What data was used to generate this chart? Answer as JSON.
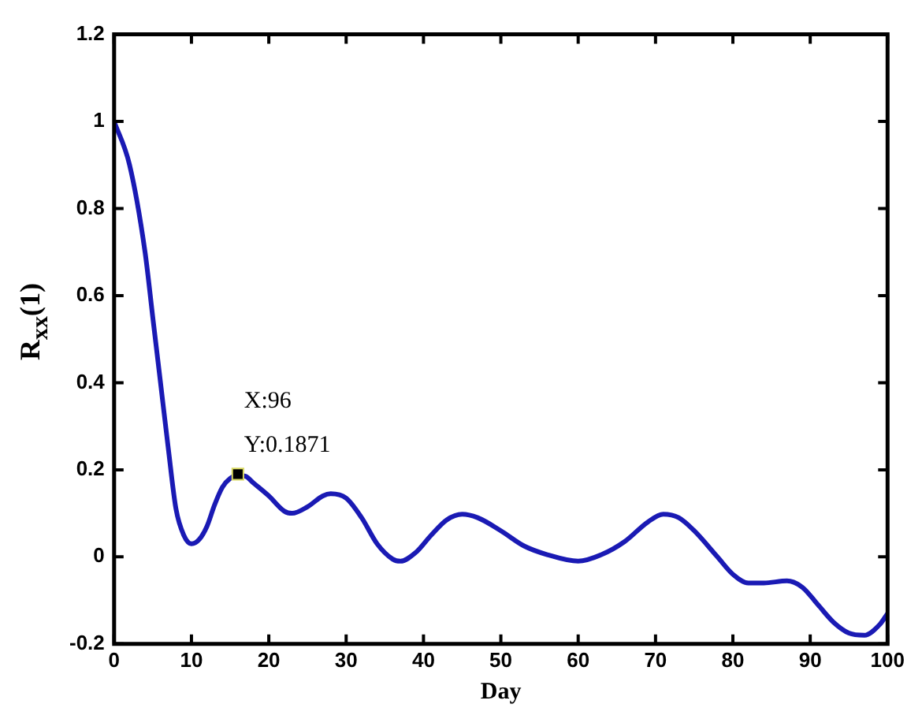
{
  "chart_data": {
    "type": "line",
    "xlabel": "Day",
    "ylabel": "R$_{xx}$(1)",
    "xlim": [
      0,
      100
    ],
    "xticks": [
      0,
      10,
      20,
      30,
      40,
      50,
      60,
      70,
      80,
      90,
      100
    ],
    "ylim": [
      -0.2,
      1.2
    ],
    "yticks": [
      -0.2,
      0,
      0.2,
      0.4,
      0.6,
      0.8,
      1,
      1.2
    ],
    "grid": false,
    "legend": false,
    "series": [
      {
        "color": "#1a1ab4",
        "marker": "none",
        "line_style": "solid",
        "x": [
          0,
          2,
          4,
          5,
          6,
          7,
          8,
          9,
          10,
          11,
          12,
          13,
          14,
          15,
          16,
          17,
          18,
          20,
          22,
          23,
          25,
          27,
          28,
          30,
          32,
          34,
          36,
          37,
          39,
          41,
          43,
          45,
          47,
          50,
          53,
          56,
          60,
          63,
          66,
          69,
          71,
          73,
          75,
          78,
          80,
          82,
          84,
          87,
          89,
          91,
          93,
          95,
          97,
          99,
          100
        ],
        "values": [
          1.0,
          0.9,
          0.7,
          0.55,
          0.4,
          0.25,
          0.11,
          0.05,
          0.03,
          0.04,
          0.07,
          0.12,
          0.16,
          0.18,
          0.187,
          0.185,
          0.17,
          0.14,
          0.105,
          0.1,
          0.115,
          0.14,
          0.145,
          0.135,
          0.09,
          0.03,
          -0.005,
          -0.01,
          0.01,
          0.05,
          0.085,
          0.098,
          0.09,
          0.06,
          0.025,
          0.005,
          -0.01,
          0.005,
          0.035,
          0.08,
          0.098,
          0.09,
          0.06,
          0.0,
          -0.04,
          -0.06,
          -0.06,
          -0.055,
          -0.07,
          -0.11,
          -0.15,
          -0.175,
          -0.18,
          -0.155,
          -0.13
        ]
      },
      {
        "type": "scatter",
        "color": "#000000",
        "marker": "square",
        "x": [
          16
        ],
        "values": [
          0.19
        ]
      }
    ],
    "annotations": [
      {
        "text": "X:96",
        "x": 16,
        "y": 0.19
      },
      {
        "text": "Y:0.1871",
        "x": 16,
        "y": 0.19
      }
    ]
  }
}
